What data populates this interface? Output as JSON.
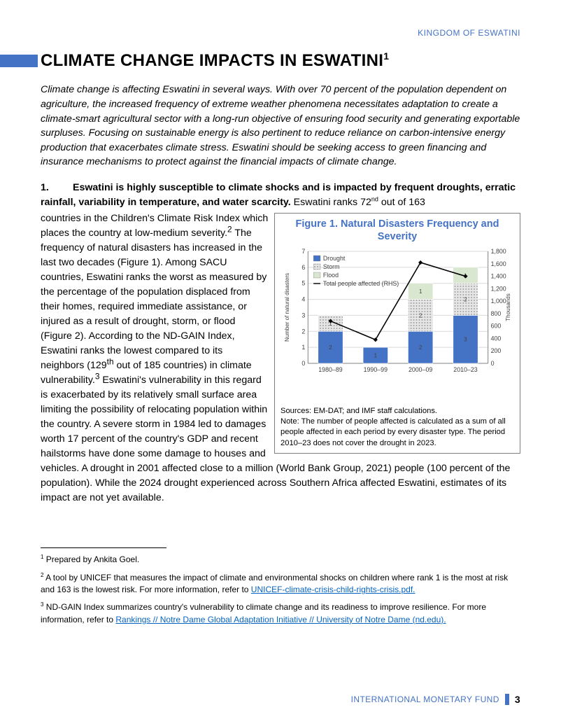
{
  "header": {
    "country_line": "KINGDOM OF ESWATINI"
  },
  "title": {
    "text": "CLIMATE CHANGE IMPACTS IN ESWATINI",
    "superscript": "1"
  },
  "intro": "Climate change is affecting Eswatini in several ways. With over 70 percent of the population dependent on agriculture, the increased frequency of extreme weather phenomena necessitates adaptation to create a climate-smart agricultural sector with a long-run objective of ensuring food security and generating exportable surpluses. Focusing on sustainable energy is also pertinent to reduce reliance on carbon-intensive energy production that exacerbates climate stress. Eswatini should be seeking access to green financing and insurance mechanisms to protect against the financial impacts of climate change.",
  "para1": {
    "number": "1.",
    "lead": "Eswatini is highly susceptible to climate shocks and is impacted by frequent droughts, erratic rainfall, variability in temperature, and water scarcity.",
    "tail_a": " Eswatini ranks 72",
    "tail_a_sup": "nd",
    "tail_b": " out of 163 countries in the Children's Climate Risk Index which places the country at low-medium severity.",
    "sup2": "2",
    "body_a": " The frequency of natural disasters has increased in the last two decades (Figure 1). Among SACU countries, Eswatini ranks the worst as measured by the percentage of the population displaced from their homes, required immediate assistance, or injured as a result of drought, storm, or flood (Figure 2). According to the ND-GAIN Index, Eswatini ranks the lowest compared to its neighbors (129",
    "body_a_sup": "th",
    "body_b": " out of 185 countries) in climate vulnerability.",
    "sup3": "3",
    "body_c": " Eswatini's vulnerability in this regard is exacerbated by its relatively small surface area limiting the possibility of relocating population within the country. A severe storm in 1984 led to damages worth 17 percent of the country's GDP and recent hailstorms have done some damage to houses and vehicles. A drought in 2001 affected close to a million (World Bank Group, 2021) people (100 percent of the population). While the 2024 drought experienced across Southern Africa affected Eswatini, estimates of its impact are not yet available."
  },
  "figure": {
    "title": "Figure 1. Natural Disasters Frequency and Severity",
    "sources": "Sources: EM-DAT; and IMF staff calculations.",
    "note": "Note: The number of people affected is calculated as a sum of all people affected in each period by every disaster type. The period 2010–23 does not cover the drought in 2023.",
    "chart": {
      "type": "bar+line",
      "categories": [
        "1980–89",
        "1990–99",
        "2000–09",
        "2010–23"
      ],
      "series": [
        {
          "name": "Drought",
          "color": "#4472c4",
          "values": [
            2,
            1,
            2,
            3
          ]
        },
        {
          "name": "Storm",
          "color": "#c0c0c0",
          "pattern": "dots",
          "values": [
            1,
            0,
            2,
            2
          ]
        },
        {
          "name": "Flood",
          "color": "#d9e6d0",
          "values": [
            0,
            0,
            1,
            1
          ]
        }
      ],
      "line": {
        "name": "Total people affected (RHS)",
        "color": "#000000",
        "values": [
          680,
          380,
          1620,
          1400
        ]
      },
      "y_left": {
        "label": "Number of natural disasters",
        "min": 0,
        "max": 7,
        "step": 1
      },
      "y_right": {
        "label": "Thousands",
        "min": 0,
        "max": 1800,
        "step": 200
      },
      "background": "#ffffff",
      "grid_color": "#d9d9d9",
      "bar_width": 0.55,
      "axis_fontsize": 9,
      "legend_fontsize": 9,
      "segment_label_color": "#404040",
      "segment_label_fontsize": 8
    }
  },
  "footnotes": {
    "f1": {
      "sup": "1",
      "text": " Prepared by Ankita Goel."
    },
    "f2": {
      "sup": "2",
      "text_a": " A tool by UNICEF that measures the impact of climate and environmental shocks on children where rank 1 is the most at risk and 163 is the lowest risk. For more information, refer to ",
      "link": "UNICEF-climate-crisis-child-rights-crisis.pdf."
    },
    "f3": {
      "sup": "3",
      "text_a": " ND-GAIN Index summarizes country's vulnerability to climate change and its readiness to improve resilience. For more information, refer to ",
      "link": "Rankings // Notre Dame Global Adaptation Initiative // University of Notre Dame (nd.edu)."
    }
  },
  "footer": {
    "org": "INTERNATIONAL MONETARY FUND",
    "page": "3"
  }
}
